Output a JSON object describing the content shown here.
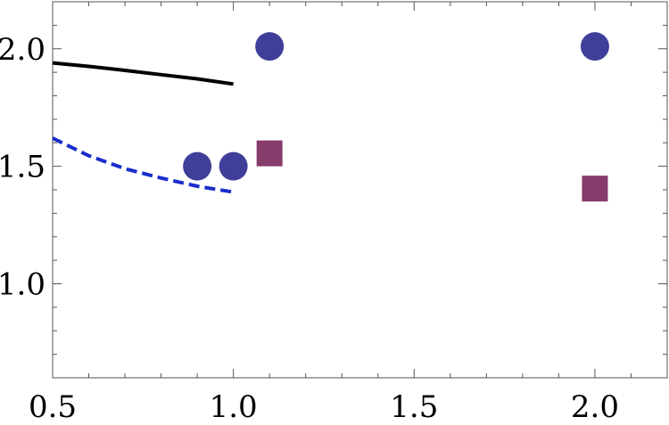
{
  "chart_data": {
    "type": "scatter",
    "title": "",
    "xlabel": "",
    "ylabel": "",
    "xlim": [
      0.5,
      2.2
    ],
    "ylim": [
      0.6,
      2.2
    ],
    "grid": false,
    "x_ticks": [
      {
        "value": 0.5,
        "label": "0.5"
      },
      {
        "value": 1.0,
        "label": "1.0"
      },
      {
        "value": 1.5,
        "label": "1.5"
      },
      {
        "value": 2.0,
        "label": "2.0"
      }
    ],
    "y_ticks": [
      {
        "value": 1.0,
        "label": "1.0"
      },
      {
        "value": 1.5,
        "label": "1.5"
      },
      {
        "value": 2.0,
        "label": "2.0"
      }
    ],
    "series": [
      {
        "kind": "line",
        "style": "solid",
        "color": "#000000",
        "points": [
          [
            0.5,
            1.94
          ],
          [
            0.6,
            1.925
          ],
          [
            0.7,
            1.908
          ],
          [
            0.8,
            1.89
          ],
          [
            0.9,
            1.872
          ],
          [
            1.0,
            1.85
          ]
        ]
      },
      {
        "kind": "line",
        "style": "dashed",
        "color": "#1a2ccc",
        "points": [
          [
            0.5,
            1.62
          ],
          [
            0.6,
            1.545
          ],
          [
            0.7,
            1.49
          ],
          [
            0.8,
            1.45
          ],
          [
            0.9,
            1.415
          ],
          [
            1.0,
            1.39
          ]
        ]
      },
      {
        "kind": "scatter",
        "marker": "circle",
        "color": "#3f3f99",
        "points": [
          [
            0.9,
            1.5
          ],
          [
            1.0,
            1.5
          ],
          [
            1.1,
            2.01
          ],
          [
            2.0,
            2.01
          ]
        ]
      },
      {
        "kind": "scatter",
        "marker": "square",
        "color": "#873c6c",
        "points": [
          [
            1.1,
            1.555
          ],
          [
            2.0,
            1.405
          ]
        ]
      }
    ]
  }
}
